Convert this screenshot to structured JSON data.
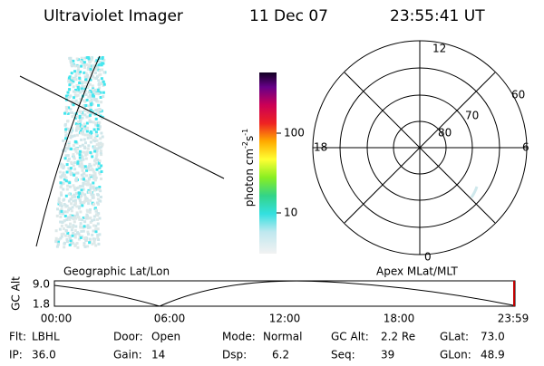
{
  "header": {
    "title": "Ultraviolet Imager",
    "date": "11 Dec 07",
    "time": "23:55:41 UT"
  },
  "colorbar": {
    "label": "photon cm",
    "exp1": "-2",
    "unit2": "s",
    "exp2": "-1",
    "ticks": [
      "100",
      "10"
    ]
  },
  "polar": {
    "hours": [
      "12",
      "18",
      "6",
      "0"
    ],
    "lats": [
      "60",
      "70",
      "80"
    ]
  },
  "projections": {
    "left": "Geographic Lat/Lon",
    "right": "Apex MLat/MLT"
  },
  "timeline": {
    "ylabel": "GC Alt",
    "yticks": [
      "9.0",
      "1.8"
    ],
    "xticks": [
      "00:00",
      "06:00",
      "12:00",
      "18:00",
      "23:59"
    ]
  },
  "status": [
    [
      {
        "label": "Flt:",
        "value": "LBHL"
      },
      {
        "label": "Door:",
        "value": "Open"
      },
      {
        "label": "Mode:",
        "value": "Normal"
      },
      {
        "label": "GC Alt:",
        "value": "2.2 Re"
      },
      {
        "label": "GLat:",
        "value": "73.0"
      }
    ],
    [
      {
        "label": "IP:",
        "value": "36.0"
      },
      {
        "label": "Gain:",
        "value": "14"
      },
      {
        "label": "Dsp:",
        "value": "6.2"
      },
      {
        "label": "Seq:",
        "value": "39"
      },
      {
        "label": "GLon:",
        "value": "48.9"
      }
    ]
  ]
}
